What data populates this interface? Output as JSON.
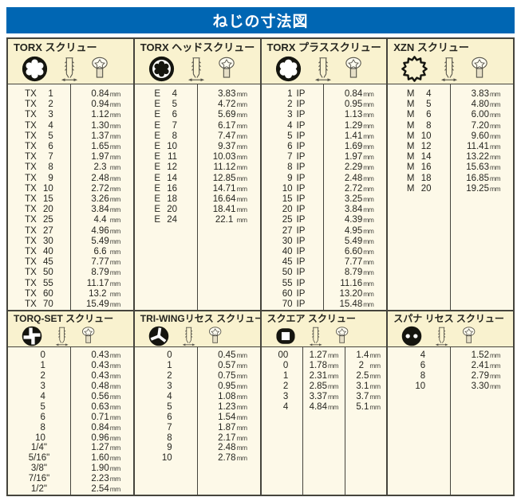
{
  "title": "ねじの寸法図",
  "unit": "mm",
  "colors": {
    "header_blue": "#0066b3",
    "band_cream": "#f9f2cf",
    "paper_cream": "#fdf9e8",
    "border": "#45443c"
  },
  "sections_top": [
    {
      "title": "TORX スクリュー",
      "icons": [
        "torx-internal-icon",
        "screw-side-icon",
        "screw-head-icon"
      ],
      "rows": [
        [
          "TX 1",
          "0.84"
        ],
        [
          "TX 2",
          "0.94"
        ],
        [
          "TX 3",
          "1.12"
        ],
        [
          "TX 4",
          "1.30"
        ],
        [
          "TX 5",
          "1.37"
        ],
        [
          "TX 6",
          "1.65"
        ],
        [
          "TX 7",
          "1.97"
        ],
        [
          "TX 8",
          "2.3 "
        ],
        [
          "TX 9",
          "2.48"
        ],
        [
          "TX 10",
          "2.72"
        ],
        [
          "TX 15",
          "3.26"
        ],
        [
          "TX 20",
          "3.84"
        ],
        [
          "TX 25",
          "4.4 "
        ],
        [
          "TX 27",
          "4.96"
        ],
        [
          "TX 30",
          "5.49"
        ],
        [
          "TX 40",
          "6.6 "
        ],
        [
          "TX 45",
          "7.77"
        ],
        [
          "TX 50",
          "8.79"
        ],
        [
          "TX 55",
          "11.17"
        ],
        [
          "TX 60",
          "13.2 "
        ],
        [
          "TX 70",
          "15.49"
        ]
      ]
    },
    {
      "title": "TORX ヘッドスクリュー",
      "icons": [
        "torx-external-icon",
        "screw-side-icon",
        "screw-head-icon"
      ],
      "rows": [
        [
          "E 4",
          "3.83"
        ],
        [
          "E 5",
          "4.72"
        ],
        [
          "E 6",
          "5.69"
        ],
        [
          "E 7",
          "6.17"
        ],
        [
          "E 8",
          "7.47"
        ],
        [
          "E 10",
          "9.37"
        ],
        [
          "E 11",
          "10.03"
        ],
        [
          "E 12",
          "11.12"
        ],
        [
          "E 14",
          "12.85"
        ],
        [
          "E 16",
          "14.71"
        ],
        [
          "E 18",
          "16.64"
        ],
        [
          "E 20",
          "18.41"
        ],
        [
          "E 24",
          "22.1 "
        ]
      ]
    },
    {
      "title": "TORX プラススクリュー",
      "icons": [
        "torx-plus-icon",
        "screw-side-icon",
        "screw-head-icon"
      ],
      "rows": [
        [
          "1 IP",
          "0.84"
        ],
        [
          "2 IP",
          "0.95"
        ],
        [
          "3 IP",
          "1.13"
        ],
        [
          "4 IP",
          "1.29"
        ],
        [
          "5 IP",
          "1.41"
        ],
        [
          "6 IP",
          "1.69"
        ],
        [
          "7 IP",
          "1.97"
        ],
        [
          "8 IP",
          "2.29"
        ],
        [
          "9 IP",
          "2.48"
        ],
        [
          "10 IP",
          "2.72"
        ],
        [
          "15 IP",
          "3.25"
        ],
        [
          "20 IP",
          "3.84"
        ],
        [
          "25 IP",
          "4.39"
        ],
        [
          "27 IP",
          "4.95"
        ],
        [
          "30 IP",
          "5.49"
        ],
        [
          "40 IP",
          "6.60"
        ],
        [
          "45 IP",
          "7.77"
        ],
        [
          "50 IP",
          "8.79"
        ],
        [
          "55 IP",
          "11.16"
        ],
        [
          "60 IP",
          "13.20"
        ],
        [
          "70 IP",
          "15.48"
        ]
      ]
    },
    {
      "title": "XZN スクリュー",
      "icons": [
        "xzn-icon",
        "screw-side-icon",
        "screw-head-icon"
      ],
      "rows": [
        [
          "M 4",
          "3.83"
        ],
        [
          "M 5",
          "4.80"
        ],
        [
          "M 6",
          "6.00"
        ],
        [
          "M 8",
          "7.20"
        ],
        [
          "M 10",
          "9.60"
        ],
        [
          "M 12",
          "11.41"
        ],
        [
          "M 14",
          "13.22"
        ],
        [
          "M 16",
          "15.63"
        ],
        [
          "M 18",
          "16.85"
        ],
        [
          "M 20",
          "19.25"
        ]
      ]
    }
  ],
  "sections_bottom": [
    {
      "title": "TORQ-SET スクリュー",
      "icons": [
        "torq-set-icon",
        "screw-side-icon",
        "screw-head-icon"
      ],
      "rows": [
        [
          "0",
          "0.43"
        ],
        [
          "1",
          "0.43"
        ],
        [
          "2",
          "0.43"
        ],
        [
          "3",
          "0.48"
        ],
        [
          "4",
          "0.56"
        ],
        [
          "5",
          "0.63"
        ],
        [
          "6",
          "0.71"
        ],
        [
          "8",
          "0.84"
        ],
        [
          "10",
          "0.96"
        ],
        [
          "1/4\"",
          "1.27"
        ],
        [
          "5/16\"",
          "1.60"
        ],
        [
          "3/8\"",
          "1.90"
        ],
        [
          "7/16\"",
          "2.23"
        ],
        [
          "1/2\"",
          "2.54"
        ]
      ]
    },
    {
      "title": "TRI-WINGリセス スクリュー",
      "icons": [
        "tri-wing-icon",
        "screw-side-icon",
        "screw-head-icon"
      ],
      "rows": [
        [
          "0",
          "0.45"
        ],
        [
          "1",
          "0.57"
        ],
        [
          "2",
          "0.75"
        ],
        [
          "3",
          "0.95"
        ],
        [
          "4",
          "1.08"
        ],
        [
          "5",
          "1.23"
        ],
        [
          "6",
          "1.54"
        ],
        [
          "7",
          "1.87"
        ],
        [
          "8",
          "2.17"
        ],
        [
          "9",
          "2.48"
        ],
        [
          "10",
          "2.78"
        ]
      ]
    },
    {
      "title": "スクエア スクリュー",
      "icons": [
        "square-recess-icon",
        "screw-side-icon",
        "screw-head-icon"
      ],
      "rows": [
        [
          "00",
          "1.27",
          "1.4"
        ],
        [
          "0",
          "1.78",
          "2  "
        ],
        [
          "1",
          "2.31",
          "2.5"
        ],
        [
          "2",
          "2.85",
          "3.1"
        ],
        [
          "3",
          "3.37",
          "3.7"
        ],
        [
          "4",
          "4.84",
          "5.1"
        ]
      ]
    },
    {
      "title": "スパナ リセス スクリュー",
      "icons": [
        "spanner-recess-icon",
        "screw-side-icon",
        "screw-head-icon"
      ],
      "rows": [
        [
          "4",
          "1.52"
        ],
        [
          "6",
          "2.41"
        ],
        [
          "8",
          "2.79"
        ],
        [
          "10",
          "3.30"
        ]
      ]
    }
  ]
}
